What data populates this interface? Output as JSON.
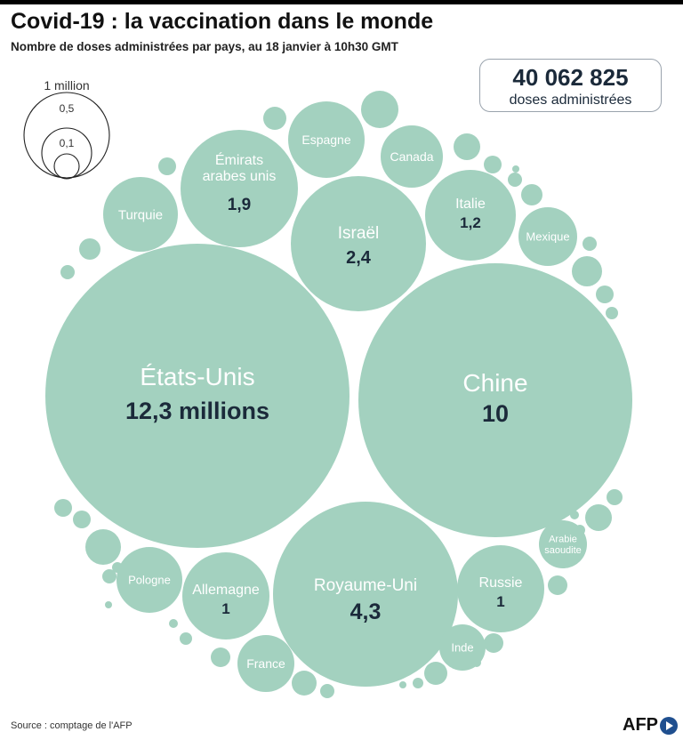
{
  "header": {
    "title": "Covid-19 : la vaccination dans le monde",
    "subtitle": "Nombre de doses administrées par pays, au 18 janvier à 10h30 GMT"
  },
  "total": {
    "value": "40 062 825",
    "label": "doses administrées"
  },
  "footer": {
    "source": "Source : comptage de l'AFP",
    "logo": "AFP"
  },
  "colors": {
    "bubble": "#a3d1bf",
    "dark_text": "#1b2a3a",
    "light_text": "#ffffff",
    "legend_stroke": "#222222"
  },
  "legend": {
    "labels": [
      "1 million",
      "0,5",
      "0,1"
    ]
  },
  "chart_data": {
    "type": "bubble",
    "unit": "millions de doses",
    "countries": [
      {
        "name": "États-Unis",
        "label": "12,3 millions",
        "value": 12.3
      },
      {
        "name": "Chine",
        "label": "10",
        "value": 10
      },
      {
        "name": "Royaume-Uni",
        "label": "4,3",
        "value": 4.3
      },
      {
        "name": "Israël",
        "label": "2,4",
        "value": 2.4
      },
      {
        "name": "Émirats arabes unis",
        "label": "1,9",
        "value": 1.9
      },
      {
        "name": "Italie",
        "label": "1,2",
        "value": 1.2
      },
      {
        "name": "Allemagne",
        "label": "1",
        "value": 1
      },
      {
        "name": "Russie",
        "label": "1",
        "value": 1
      },
      {
        "name": "Turquie",
        "label": "",
        "value": 0.75
      },
      {
        "name": "Espagne",
        "label": "",
        "value": 0.75
      },
      {
        "name": "Canada",
        "label": "",
        "value": 0.55
      },
      {
        "name": "Mexique",
        "label": "",
        "value": 0.5
      },
      {
        "name": "Pologne",
        "label": "",
        "value": 0.6
      },
      {
        "name": "France",
        "label": "",
        "value": 0.5
      },
      {
        "name": "Inde",
        "label": "",
        "value": 0.4
      },
      {
        "name": "Arabie saoudite",
        "label": "",
        "value": 0.4
      }
    ]
  }
}
